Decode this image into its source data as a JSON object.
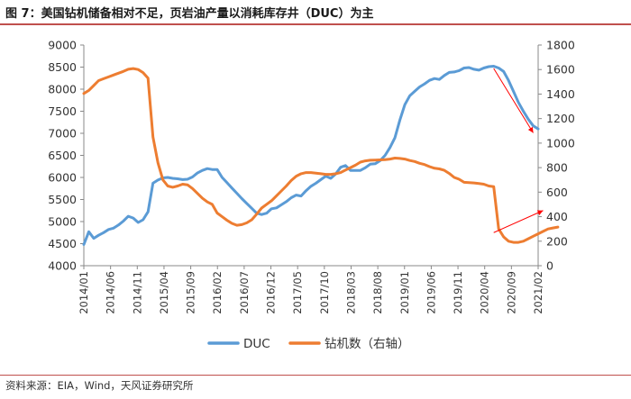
{
  "header": {
    "title": "图 7：美国钻机储备相对不足，页岩油产量以消耗库存井（DUC）为主"
  },
  "footer": {
    "source": "资料来源：EIA，Wind，天风证券研究所"
  },
  "chart_data": {
    "type": "line",
    "x_labels": [
      "2014/01",
      "2014/06",
      "2014/11",
      "2015/04",
      "2015/09",
      "2016/02",
      "2016/07",
      "2016/12",
      "2017/05",
      "2017/10",
      "2018/03",
      "2018/08",
      "2019/01",
      "2019/06",
      "2019/11",
      "2020/04",
      "2020/09",
      "2021/02"
    ],
    "ylim_left": [
      4000,
      9000
    ],
    "yticks_left": [
      4000,
      4500,
      5000,
      5500,
      6000,
      6500,
      7000,
      7500,
      8000,
      8500,
      9000
    ],
    "ylim_right": [
      0,
      1800
    ],
    "yticks_right": [
      0,
      200,
      400,
      600,
      800,
      1000,
      1200,
      1400,
      1600,
      1800
    ],
    "grid": false,
    "legend_position": "bottom",
    "series": [
      {
        "name": "DUC",
        "axis": "left",
        "color": "#5b9bd5",
        "values": [
          4480,
          4770,
          4620,
          4690,
          4750,
          4820,
          4850,
          4920,
          5010,
          5120,
          5080,
          4980,
          5040,
          5220,
          5870,
          5940,
          5990,
          6000,
          5980,
          5970,
          5950,
          5960,
          6010,
          6100,
          6160,
          6200,
          6180,
          6180,
          6000,
          5880,
          5760,
          5640,
          5520,
          5410,
          5300,
          5190,
          5160,
          5190,
          5290,
          5310,
          5380,
          5450,
          5540,
          5600,
          5580,
          5700,
          5800,
          5870,
          5950,
          6030,
          5980,
          6080,
          6230,
          6270,
          6160,
          6160,
          6160,
          6220,
          6300,
          6310,
          6380,
          6500,
          6680,
          6900,
          7300,
          7650,
          7850,
          7950,
          8050,
          8120,
          8200,
          8240,
          8220,
          8310,
          8380,
          8390,
          8420,
          8480,
          8490,
          8450,
          8430,
          8480,
          8510,
          8520,
          8480,
          8400,
          8200,
          7950,
          7700,
          7500,
          7320,
          7170,
          7100
        ]
      },
      {
        "name": "钻机数（右轴）",
        "axis": "right",
        "color": "#ed7d31",
        "values": [
          1405,
          1430,
          1470,
          1510,
          1525,
          1540,
          1555,
          1570,
          1585,
          1602,
          1608,
          1600,
          1575,
          1530,
          1050,
          840,
          700,
          650,
          640,
          650,
          665,
          660,
          630,
          590,
          550,
          520,
          500,
          430,
          400,
          370,
          345,
          330,
          335,
          350,
          375,
          420,
          470,
          500,
          530,
          570,
          610,
          650,
          695,
          730,
          750,
          760,
          760,
          755,
          750,
          745,
          745,
          750,
          760,
          780,
          800,
          820,
          845,
          855,
          860,
          862,
          863,
          865,
          870,
          878,
          875,
          870,
          858,
          850,
          835,
          825,
          808,
          795,
          790,
          778,
          752,
          720,
          705,
          680,
          678,
          675,
          670,
          665,
          650,
          645,
          300,
          235,
          200,
          190,
          190,
          200,
          220,
          240,
          260,
          280,
          300,
          308,
          315
        ]
      }
    ],
    "annotations": [
      {
        "type": "arrow",
        "color": "#ff0000",
        "from": [
          83,
          8470
        ],
        "to": [
          91,
          7010
        ],
        "axis": "left"
      },
      {
        "type": "arrow",
        "color": "#ff0000",
        "from": [
          83,
          270
        ],
        "to": [
          93,
          450
        ],
        "axis": "right"
      }
    ]
  }
}
